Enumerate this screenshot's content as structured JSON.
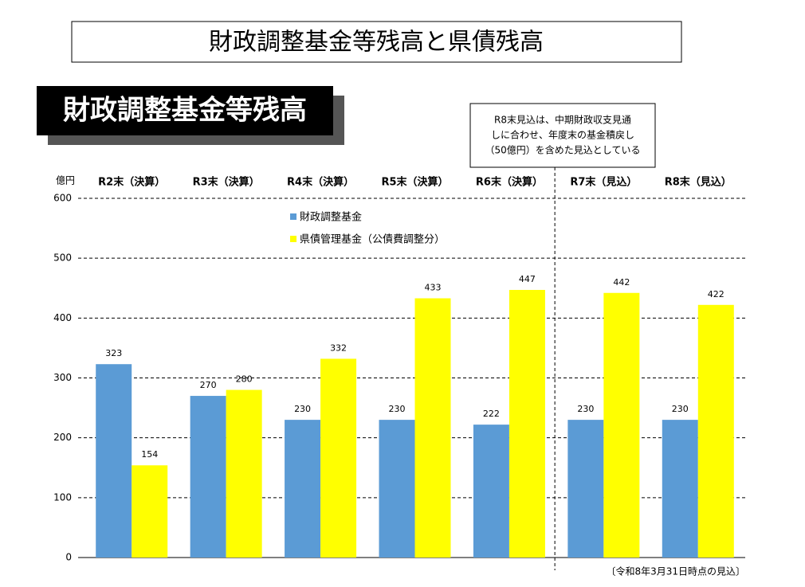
{
  "chart_data": {
    "type": "bar",
    "title": "財政調整基金等残高と県債残高",
    "subtitle": "財政調整基金等残高",
    "annotation": [
      "R8末見込は、中期財政収支見通",
      "しに合わせ、年度末の基金積戻し",
      "（50億円）を含めた見込としている"
    ],
    "y_label": "億円",
    "footnote": "〔令和8年3月31日時点の見込〕",
    "categories": [
      "R2末（決算）",
      "R3末（決算）",
      "R4末（決算）",
      "R5末（決算）",
      "R6末（決算）",
      "R7末（見込）",
      "R8末（見込）"
    ],
    "series": [
      {
        "name": "財政調整基金",
        "color": "#5b9bd5",
        "values": [
          323,
          270,
          230,
          230,
          222,
          230,
          230
        ]
      },
      {
        "name": "県債管理基金（公債費調整分）",
        "color": "#ffff00",
        "values": [
          154,
          280,
          332,
          433,
          447,
          442,
          422
        ]
      }
    ],
    "ylim": [
      0,
      600
    ],
    "yticks": [
      0,
      100,
      200,
      300,
      400,
      500,
      600
    ],
    "grid": true
  }
}
